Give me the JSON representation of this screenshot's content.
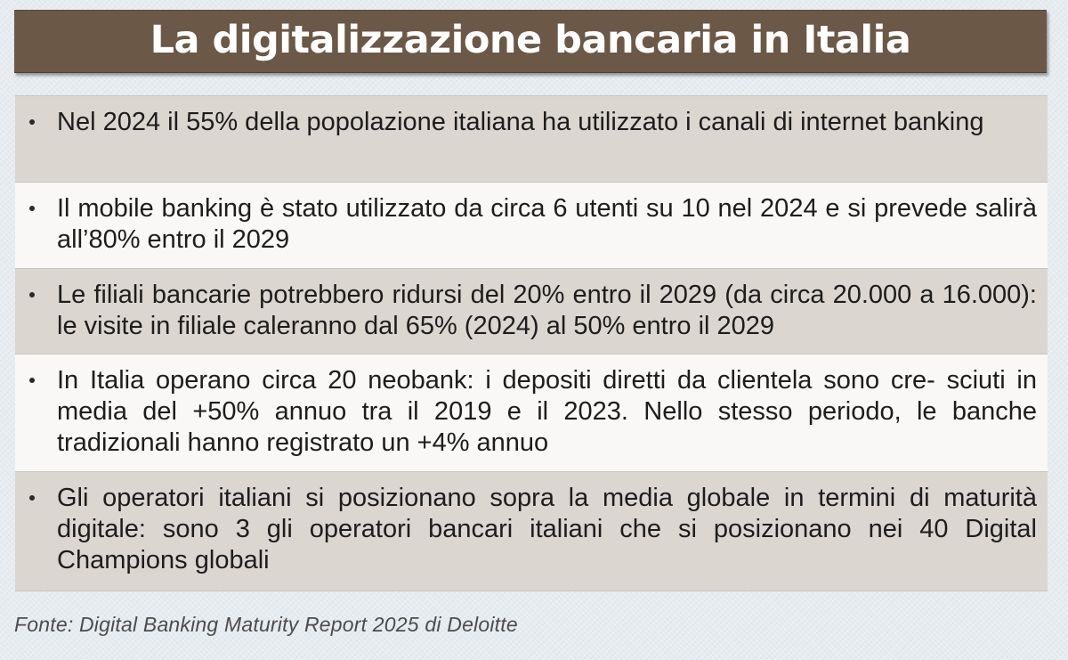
{
  "title": "La digitalizzazione bancaria in Italia",
  "items": [
    "Nel 2024 il 55% della popolazione italiana ha utilizzato i canali di internet banking",
    "Il mobile banking è stato utilizzato da circa 6 utenti su 10 nel 2024 e si prevede salirà all’80% entro il 2029",
    "Le filiali bancarie potrebbero ridursi del 20% entro il 2029 (da circa 20.000 a 16.000): le visite in filiale caleranno dal 65% (2024) al 50% entro il 2029",
    "In Italia operano circa 20 neobank: i depositi diretti da clientela sono cre- sciuti in media del +50% annuo tra il 2019 e il 2023. Nello stesso periodo, le banche tradizionali hanno registrato un +4% annuo",
    "Gli operatori italiani si posizionano sopra la media globale in termini di maturità digitale: sono 3 gli operatori bancari italiani che si posizionano nei 40 Digital Champions globali"
  ],
  "source": "Fonte: Digital Banking Maturity Report 2025 di Deloitte",
  "colors": {
    "title_bar": "#6b5847",
    "row_shaded": "#dcd6d1",
    "row_plain": "#f9f8f7",
    "background": "#e6ebef"
  }
}
